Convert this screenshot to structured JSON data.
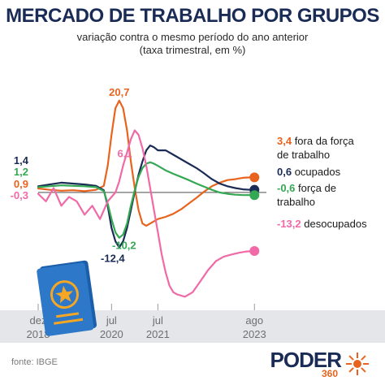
{
  "chart_data": {
    "type": "line",
    "title": "MERCADO DE TRABALHO POR GRUPOS",
    "subtitle": [
      "variação contra o mesmo período do ano anterior",
      "(taxa trimestral, em %)"
    ],
    "source": "fonte: IBGE",
    "xlabel": "",
    "ylabel": "",
    "x_ticks": [
      {
        "month": "dez",
        "year": "2018",
        "x": 0
      },
      {
        "month": "jul",
        "year": "2020",
        "x": 19
      },
      {
        "month": "jul",
        "year": "2021",
        "x": 31
      },
      {
        "month": "ago",
        "year": "2023",
        "x": 56
      }
    ],
    "x_range": [
      0,
      57
    ],
    "ylim": [
      -24,
      26
    ],
    "grid": false,
    "zero_line": true,
    "series": [
      {
        "name": "fora da força de trabalho",
        "label_lines": [
          "fora da força",
          "de trabalho"
        ],
        "color": "#e8641e",
        "start_label": "0,9",
        "end_label": "3,4",
        "points": [
          [
            0,
            0.9
          ],
          [
            3,
            0.6
          ],
          [
            6,
            0.4
          ],
          [
            9,
            0.5
          ],
          [
            12,
            0.3
          ],
          [
            15,
            0.6
          ],
          [
            17,
            1.5
          ],
          [
            18,
            6
          ],
          [
            19,
            13
          ],
          [
            20,
            19
          ],
          [
            21,
            20.7
          ],
          [
            22,
            19
          ],
          [
            23,
            14
          ],
          [
            24,
            7
          ],
          [
            25,
            1
          ],
          [
            26,
            -4
          ],
          [
            27,
            -7
          ],
          [
            28,
            -7.5
          ],
          [
            29,
            -7
          ],
          [
            30,
            -6.5
          ],
          [
            31,
            -6
          ],
          [
            33,
            -5.5
          ],
          [
            35,
            -4.8
          ],
          [
            37,
            -3.8
          ],
          [
            39,
            -2.5
          ],
          [
            41,
            -1.2
          ],
          [
            43,
            0.2
          ],
          [
            45,
            1.4
          ],
          [
            47,
            2.2
          ],
          [
            49,
            2.8
          ],
          [
            51,
            3.0
          ],
          [
            53,
            3.3
          ],
          [
            55,
            3.4
          ],
          [
            56,
            3.4
          ]
        ]
      },
      {
        "name": "ocupados",
        "label_lines": [
          "ocupados"
        ],
        "color": "#1a2b55",
        "start_label": "1,4",
        "end_label": "0,6",
        "points": [
          [
            0,
            1.4
          ],
          [
            3,
            1.8
          ],
          [
            6,
            2.2
          ],
          [
            9,
            2.0
          ],
          [
            12,
            1.8
          ],
          [
            15,
            1.5
          ],
          [
            17,
            0.5
          ],
          [
            18,
            -3
          ],
          [
            19,
            -8
          ],
          [
            20,
            -11
          ],
          [
            21,
            -12.4
          ],
          [
            22,
            -11
          ],
          [
            23,
            -8
          ],
          [
            24,
            -4
          ],
          [
            25,
            0.2
          ],
          [
            26,
            4
          ],
          [
            27,
            7
          ],
          [
            28,
            9.5
          ],
          [
            29,
            10.6
          ],
          [
            30,
            10.2
          ],
          [
            31,
            9.5
          ],
          [
            33,
            9.5
          ],
          [
            35,
            8.5
          ],
          [
            37,
            7.5
          ],
          [
            39,
            6.5
          ],
          [
            41,
            5.5
          ],
          [
            43,
            4.3
          ],
          [
            45,
            3
          ],
          [
            47,
            2
          ],
          [
            49,
            1.4
          ],
          [
            51,
            1
          ],
          [
            53,
            0.7
          ],
          [
            55,
            0.6
          ],
          [
            56,
            0.6
          ]
        ]
      },
      {
        "name": "força de trabalho",
        "label_lines": [
          "força de",
          "trabalho"
        ],
        "color": "#34a853",
        "start_label": "1,2",
        "end_label": "-0,6",
        "points": [
          [
            0,
            1.2
          ],
          [
            3,
            1.4
          ],
          [
            6,
            1.6
          ],
          [
            9,
            1.5
          ],
          [
            12,
            1.4
          ],
          [
            15,
            1.2
          ],
          [
            17,
            0.3
          ],
          [
            18,
            -2.5
          ],
          [
            19,
            -6
          ],
          [
            20,
            -9
          ],
          [
            21,
            -10.2
          ],
          [
            22,
            -9.5
          ],
          [
            23,
            -7
          ],
          [
            24,
            -3
          ],
          [
            25,
            0.5
          ],
          [
            26,
            3.5
          ],
          [
            27,
            5.5
          ],
          [
            28,
            6.5
          ],
          [
            29,
            6.8
          ],
          [
            30,
            6.5
          ],
          [
            31,
            6
          ],
          [
            33,
            5
          ],
          [
            35,
            4.2
          ],
          [
            37,
            3.5
          ],
          [
            39,
            2.8
          ],
          [
            41,
            2
          ],
          [
            43,
            1.3
          ],
          [
            45,
            0.6
          ],
          [
            47,
            0
          ],
          [
            49,
            -0.3
          ],
          [
            51,
            -0.5
          ],
          [
            53,
            -0.6
          ],
          [
            55,
            -0.6
          ],
          [
            56,
            -0.6
          ]
        ]
      },
      {
        "name": "desocupados",
        "label_lines": [
          "desocupados"
        ],
        "color": "#ef6aa6",
        "start_label": "-0,3",
        "end_label": "-13,2",
        "points": [
          [
            0,
            -0.3
          ],
          [
            2,
            -2
          ],
          [
            4,
            1
          ],
          [
            6,
            -3
          ],
          [
            8,
            -1
          ],
          [
            10,
            -2
          ],
          [
            12,
            -5
          ],
          [
            14,
            -3
          ],
          [
            16,
            -6
          ],
          [
            18,
            -2
          ],
          [
            20,
            0
          ],
          [
            21,
            2.5
          ],
          [
            22,
            6.1
          ],
          [
            23,
            9
          ],
          [
            24,
            12
          ],
          [
            25,
            14
          ],
          [
            26,
            13
          ],
          [
            27,
            10
          ],
          [
            28,
            6
          ],
          [
            29,
            1
          ],
          [
            30,
            -4
          ],
          [
            31,
            -9
          ],
          [
            32,
            -14
          ],
          [
            33,
            -18
          ],
          [
            34,
            -21
          ],
          [
            35,
            -22.5
          ],
          [
            36,
            -23
          ],
          [
            38,
            -23.5
          ],
          [
            40,
            -22.5
          ],
          [
            42,
            -20
          ],
          [
            44,
            -17.5
          ],
          [
            46,
            -15.5
          ],
          [
            48,
            -14.5
          ],
          [
            50,
            -14
          ],
          [
            52,
            -13.6
          ],
          [
            54,
            -13.3
          ],
          [
            56,
            -13.2
          ]
        ]
      }
    ],
    "annotations": [
      {
        "text": "20,7",
        "series": 0,
        "x": 21,
        "y": 20.7,
        "color": "#e8641e"
      },
      {
        "text": "-12,4",
        "series": 1,
        "x": 21,
        "y": -12.4,
        "color": "#1a2b55"
      },
      {
        "text": "-10,2",
        "series": 2,
        "x": 21,
        "y": -10.2,
        "color": "#34a853"
      },
      {
        "text": "6,1",
        "series": 3,
        "x": 22,
        "y": 6.1,
        "color": "#ef6aa6"
      }
    ]
  },
  "branding": {
    "wordmark": "PODER",
    "number": "360"
  }
}
